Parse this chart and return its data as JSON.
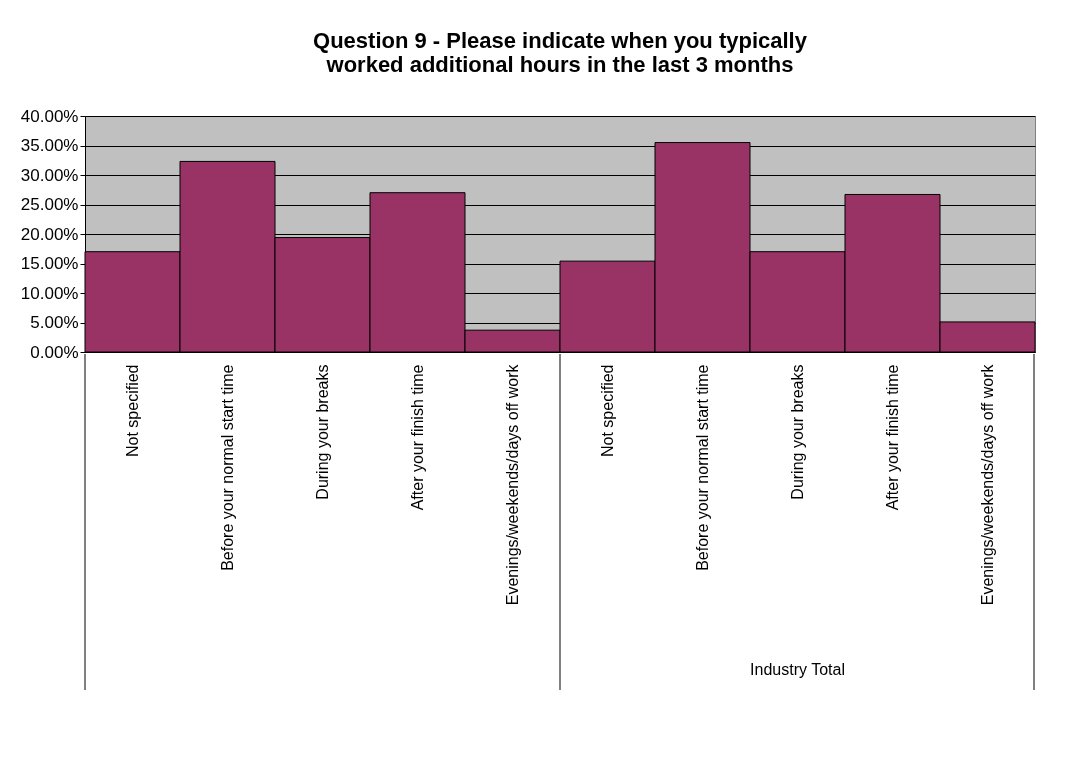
{
  "chart_data": {
    "type": "bar",
    "title": "Question 9 - Please indicate when you typically worked additional hours in the last 3 months",
    "categories": [
      "Not specified",
      "Before your normal start time",
      "During your breaks",
      "After your finish time",
      "Evenings/weekends/days off work",
      "Not specified",
      "Before your normal start time",
      "During your breaks",
      "After your finish time",
      "Evenings/weekends/days off work"
    ],
    "values": [
      17.0,
      32.3,
      19.4,
      27.0,
      3.7,
      15.4,
      35.5,
      17.0,
      26.7,
      5.1
    ],
    "color": "#993366",
    "ylim": [
      0,
      40
    ],
    "yticks": [
      {
        "value": 0,
        "label": "0.00%"
      },
      {
        "value": 5,
        "label": "5.00%"
      },
      {
        "value": 10,
        "label": "10.00%"
      },
      {
        "value": 15,
        "label": "15.00%"
      },
      {
        "value": 20,
        "label": "20.00%"
      },
      {
        "value": 25,
        "label": "25.00%"
      },
      {
        "value": 30,
        "label": "30.00%"
      },
      {
        "value": 35,
        "label": "35.00%"
      },
      {
        "value": 40,
        "label": "40.00%"
      }
    ],
    "grid": "y",
    "annotations": [
      "Industry Total"
    ]
  }
}
